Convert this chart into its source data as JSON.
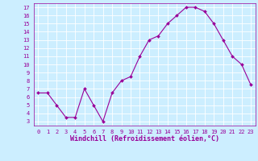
{
  "x": [
    0,
    1,
    2,
    3,
    4,
    5,
    6,
    7,
    8,
    9,
    10,
    11,
    12,
    13,
    14,
    15,
    16,
    17,
    18,
    19,
    20,
    21,
    22,
    23
  ],
  "y": [
    6.5,
    6.5,
    5.0,
    3.5,
    3.5,
    7.0,
    5.0,
    3.0,
    6.5,
    8.0,
    8.5,
    11.0,
    13.0,
    13.5,
    15.0,
    16.0,
    17.0,
    17.0,
    16.5,
    15.0,
    13.0,
    11.0,
    10.0,
    7.5
  ],
  "line_color": "#990099",
  "marker": "D",
  "marker_size": 2,
  "bg_color": "#cceeff",
  "grid_color": "#ffffff",
  "xlabel": "Windchill (Refroidissement éolien,°C)",
  "xlabel_fontsize": 6.0,
  "tick_label_color": "#990099",
  "xlabel_color": "#990099",
  "xlim": [
    -0.5,
    23.5
  ],
  "ylim": [
    2.5,
    17.5
  ],
  "yticks": [
    3,
    4,
    5,
    6,
    7,
    8,
    9,
    10,
    11,
    12,
    13,
    14,
    15,
    16,
    17
  ],
  "xticks": [
    0,
    1,
    2,
    3,
    4,
    5,
    6,
    7,
    8,
    9,
    10,
    11,
    12,
    13,
    14,
    15,
    16,
    17,
    18,
    19,
    20,
    21,
    22,
    23
  ],
  "tick_fontsize": 5.0,
  "linewidth": 0.8
}
